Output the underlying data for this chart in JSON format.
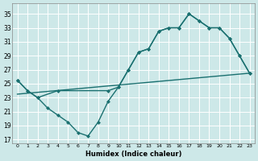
{
  "bg_color": "#cde8e8",
  "grid_color": "#ffffff",
  "line_color": "#1a7070",
  "xlabel": "Humidex (Indice chaleur)",
  "xlim": [
    -0.5,
    23.5
  ],
  "ylim": [
    16.5,
    36.5
  ],
  "yticks": [
    17,
    19,
    21,
    23,
    25,
    27,
    29,
    31,
    33,
    35
  ],
  "xticks": [
    0,
    1,
    2,
    3,
    4,
    5,
    6,
    7,
    8,
    9,
    10,
    11,
    12,
    13,
    14,
    15,
    16,
    17,
    18,
    19,
    20,
    21,
    22,
    23
  ],
  "line1_x": [
    0,
    1,
    2,
    3,
    4,
    5,
    6,
    7,
    8,
    9,
    10,
    11,
    12,
    13,
    14,
    15,
    16,
    17,
    18,
    19,
    20,
    21,
    22,
    23
  ],
  "line1_y": [
    25.5,
    24.0,
    23.0,
    21.5,
    20.5,
    19.5,
    18.0,
    17.5,
    19.5,
    22.5,
    24.5,
    27.0,
    29.5,
    30.0,
    32.5,
    33.0,
    33.0,
    35.0,
    34.0,
    33.0,
    33.0,
    31.5,
    29.0,
    26.5
  ],
  "line2_x": [
    0,
    1,
    2,
    4,
    9,
    10,
    11,
    12,
    13,
    14,
    15,
    16,
    17,
    18,
    19,
    20,
    21,
    22,
    23
  ],
  "line2_y": [
    25.5,
    24.0,
    23.0,
    24.0,
    24.0,
    24.5,
    27.0,
    29.5,
    30.0,
    32.5,
    33.0,
    33.0,
    35.0,
    34.0,
    33.0,
    33.0,
    31.5,
    29.0,
    26.5
  ],
  "line3_x": [
    0,
    23
  ],
  "line3_y": [
    23.5,
    26.5
  ]
}
